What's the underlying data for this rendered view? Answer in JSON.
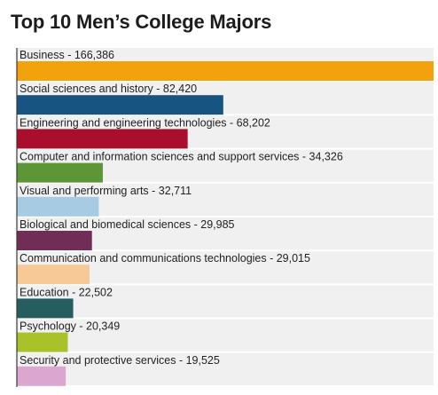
{
  "chart_data": {
    "type": "bar",
    "orientation": "horizontal",
    "title": "Top 10 Men’s College Majors",
    "xlabel": "",
    "ylabel": "",
    "xlim": [
      0,
      166386
    ],
    "grid": false,
    "legend": "none",
    "categories": [
      "Business - 166,386",
      "Social sciences and history - 82,420",
      "Engineering and engineering technologies - 68,202",
      "Computer and information sciences and support services - 34,326",
      "Visual and performing arts - 32,711",
      "Biological and biomedical sciences - 29,985",
      "Communication and communications technologies - 29,015",
      "Education - 22,502",
      "Psychology - 20,349",
      "Security and protective services - 19,525"
    ],
    "values": [
      166386,
      82420,
      68202,
      34326,
      32711,
      29985,
      29015,
      22502,
      20349,
      19525
    ],
    "colors": [
      "#f2a20d",
      "#175482",
      "#a90f2c",
      "#5c9637",
      "#a6cbe2",
      "#712d56",
      "#f6c997",
      "#265e5f",
      "#a9c22a",
      "#dba7d0"
    ],
    "row_background": "#f0f0f1",
    "axis_color": "#3a3a3a"
  }
}
